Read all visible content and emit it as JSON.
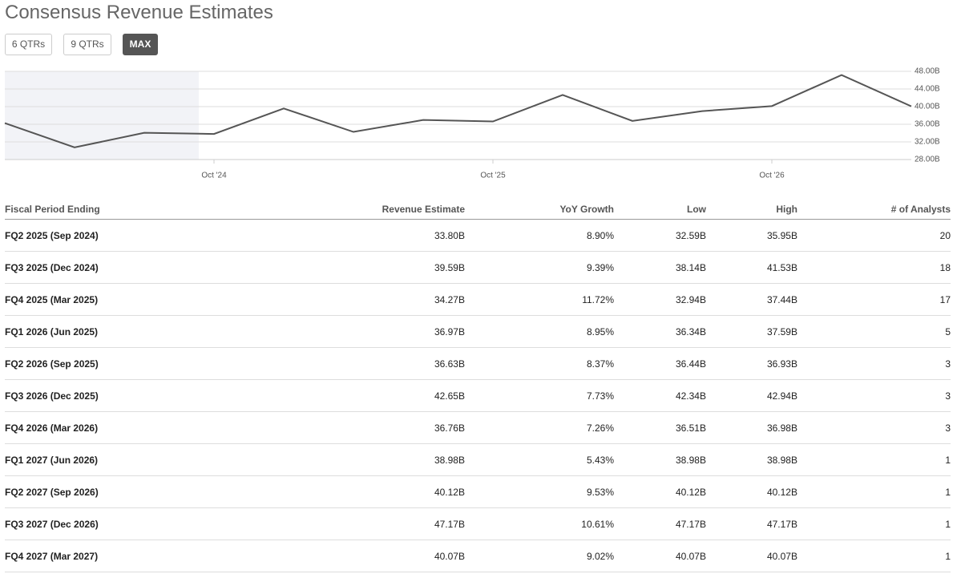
{
  "title": "Consensus Revenue Estimates",
  "buttons": [
    "6 QTRs",
    "9 QTRs",
    "MAX"
  ],
  "chart_data": {
    "type": "line",
    "categories": [
      null,
      null,
      null,
      "Oct '24",
      null,
      null,
      null,
      "Oct '25",
      null,
      null,
      null,
      "Oct '26",
      null,
      null
    ],
    "series": [
      {
        "name": "Revenue Estimate",
        "color": "#555555",
        "values": [
          36.26,
          30.75,
          34.06,
          33.8,
          39.59,
          34.27,
          36.97,
          36.63,
          42.65,
          36.76,
          38.98,
          40.12,
          47.17,
          40.07
        ]
      }
    ],
    "ylim": [
      28,
      48
    ],
    "yticks": [
      {
        "value": 28,
        "label": "28.00B"
      },
      {
        "value": 32,
        "label": "32.00B"
      },
      {
        "value": 36,
        "label": "36.00B"
      },
      {
        "value": 40,
        "label": "40.00B"
      },
      {
        "value": 44,
        "label": "44.00B"
      },
      {
        "value": 48,
        "label": "48.00B"
      }
    ],
    "grid": true
  },
  "table": {
    "header": [
      "Fiscal Period Ending",
      "Revenue Estimate",
      "YoY Growth",
      "Low",
      "High",
      "# of Analysts"
    ],
    "rows": [
      [
        "FQ2 2025 (Sep 2024)",
        "33.80B",
        "8.90%",
        "32.59B",
        "35.95B",
        "20"
      ],
      [
        "FQ3 2025 (Dec 2024)",
        "39.59B",
        "9.39%",
        "38.14B",
        "41.53B",
        "18"
      ],
      [
        "FQ4 2025 (Mar 2025)",
        "34.27B",
        "11.72%",
        "32.94B",
        "37.44B",
        "17"
      ],
      [
        "FQ1 2026 (Jun 2025)",
        "36.97B",
        "8.95%",
        "36.34B",
        "37.59B",
        "5"
      ],
      [
        "FQ2 2026 (Sep 2025)",
        "36.63B",
        "8.37%",
        "36.44B",
        "36.93B",
        "3"
      ],
      [
        "FQ3 2026 (Dec 2025)",
        "42.65B",
        "7.73%",
        "42.34B",
        "42.94B",
        "3"
      ],
      [
        "FQ4 2026 (Mar 2026)",
        "36.76B",
        "7.26%",
        "36.51B",
        "36.98B",
        "3"
      ],
      [
        "FQ1 2027 (Jun 2026)",
        "38.98B",
        "5.43%",
        "38.98B",
        "38.98B",
        "1"
      ],
      [
        "FQ2 2027 (Sep 2026)",
        "40.12B",
        "9.53%",
        "40.12B",
        "40.12B",
        "1"
      ],
      [
        "FQ3 2027 (Dec 2026)",
        "47.17B",
        "10.61%",
        "47.17B",
        "47.17B",
        "1"
      ],
      [
        "FQ4 2027 (Mar 2027)",
        "40.07B",
        "9.02%",
        "40.07B",
        "40.07B",
        "1"
      ]
    ]
  }
}
